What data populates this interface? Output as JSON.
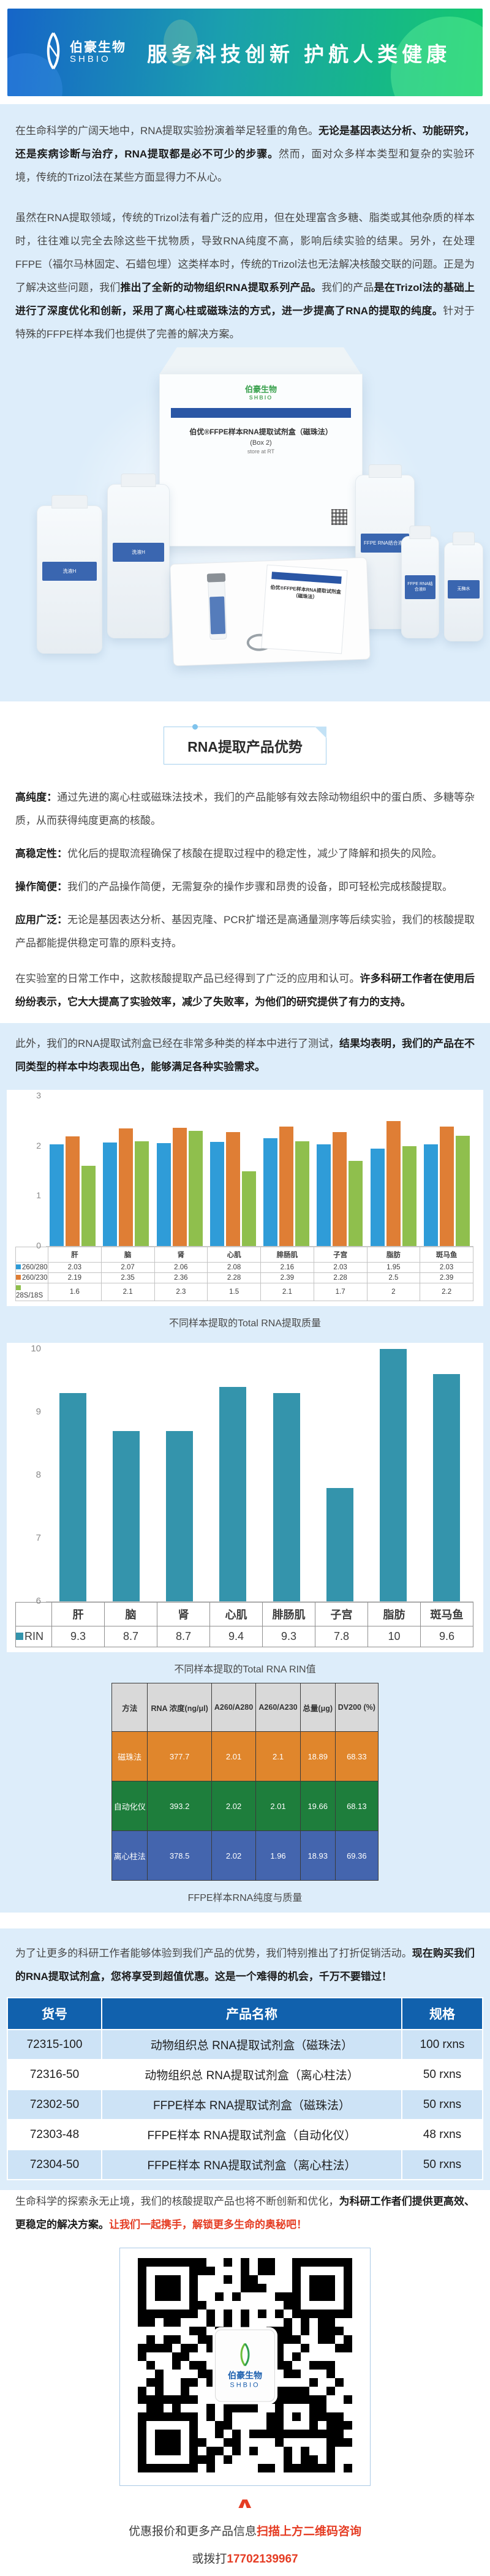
{
  "header": {
    "logo_cn": "伯豪生物",
    "logo_en": "SHBIO",
    "slogan": "服务科技创新 护航人类健康"
  },
  "intro": {
    "p1_normal1": "在生命科学的广阔天地中，RNA提取实验扮演着举足轻重的角色。",
    "p1_bold": "无论是基因表达分析、功能研究，还是疾病诊断与治疗，RNA提取都是必不可少的步骤。",
    "p1_normal2": "然而，面对众多样本类型和复杂的实验环境，传统的Trizol法在某些方面显得力不从心。",
    "p2_normal1": "虽然在RNA提取领域，传统的Trizol法有着广泛的应用，但在处理富含多糖、脂类或其他杂质的样本时，往往难以完全去除这些干扰物质，导致RNA纯度不高，影响后续实验的结果。另外，在处理FFPE（福尔马林固定、石蜡包埋）这类样本时，传统的Trizol法也无法解决核酸交联的问题。正是为了解决这些问题，我们",
    "p2_bold1": "推出了全新的动物组织RNA提取系列产品。",
    "p2_normal2": "我们的产品",
    "p2_bold2": "是在Trizol法的基础上进行了深度优化和创新，采用了离心柱或磁珠法的方式，进一步提高了RNA的提取的纯度。",
    "p2_normal3": "针对于特殊的FFPE样本我们也提供了完善的解决方案。"
  },
  "product_photo": {
    "box_title": "伯优®FFPE样本RNA提取试剂盒（磁珠法）",
    "box_subtitle": "(Box 2)",
    "box_note": "store at RT",
    "bottle_label_1": "洗液H",
    "bottle_label_2": "FFPE RNA结合液B",
    "bottle_label_3": "无酶水"
  },
  "badge": {
    "label": "RNA提取产品优势"
  },
  "features": [
    {
      "title": "高纯度：",
      "text": "通过先进的离心柱或磁珠法技术，我们的产品能够有效去除动物组织中的蛋白质、多糖等杂质，从而获得纯度更高的核酸。"
    },
    {
      "title": "高稳定性：",
      "text": "优化后的提取流程确保了核酸在提取过程中的稳定性，减少了降解和损失的风险。"
    },
    {
      "title": "操作简便：",
      "text": "我们的产品操作简便，无需复杂的操作步骤和昂贵的设备，即可轻松完成核酸提取。"
    },
    {
      "title": "应用广泛：",
      "text": "无论是基因表达分析、基因克隆、PCR扩增还是高通量测序等后续实验，我们的核酸提取产品都能提供稳定可靠的原料支持。"
    }
  ],
  "usage": {
    "normal": "在实验室的日常工作中，这款核酸提取产品已经得到了广泛的应用和认可。",
    "bold": "许多科研工作者在使用后纷纷表示，它大大提高了实验效率，减少了失败率，为他们的研究提供了有力的支持。"
  },
  "tested": {
    "normal": "此外，我们的RNA提取试剂盒已经在非常多种类的样本中进行了测试，",
    "bold": "结果均表明，我们的产品在不同类型的样本中均表现出色，能够满足各种实验需求。"
  },
  "chart_data": [
    {
      "type": "bar",
      "title": "不同样本提取的Total RNA提取质量",
      "categories": [
        "肝",
        "脑",
        "肾",
        "心肌",
        "腓肠肌",
        "子宫",
        "脂肪",
        "斑马鱼"
      ],
      "series": [
        {
          "name": "260/280",
          "color": "#2f9cd8",
          "values": [
            2.03,
            2.07,
            2.06,
            2.08,
            2.16,
            2.03,
            1.95,
            2.03
          ]
        },
        {
          "name": "260/230",
          "color": "#df7e35",
          "values": [
            2.19,
            2.35,
            2.36,
            2.28,
            2.39,
            2.28,
            2.5,
            2.39
          ]
        },
        {
          "name": "28S/18S",
          "color": "#8fbf4d",
          "values": [
            1.6,
            2.1,
            2.3,
            1.5,
            2.1,
            1.7,
            2,
            2.2
          ]
        }
      ],
      "ylim": [
        0,
        3
      ],
      "yticks": [
        0,
        1,
        2,
        3
      ],
      "grid": false,
      "legend_position": "table-below"
    },
    {
      "type": "bar",
      "title": "不同样本提取的Total RNA RIN值",
      "categories": [
        "肝",
        "脑",
        "肾",
        "心肌",
        "腓肠肌",
        "子宫",
        "脂肪",
        "斑马鱼"
      ],
      "series": [
        {
          "name": "RIN",
          "color": "#3494ac",
          "values": [
            9.3,
            8.7,
            8.7,
            9.4,
            9.3,
            7.8,
            10,
            9.6
          ]
        }
      ],
      "ylim": [
        6,
        10
      ],
      "yticks": [
        6,
        7,
        8,
        9,
        10
      ],
      "grid": false,
      "legend_position": "table-below"
    }
  ],
  "ffpe_table": {
    "title": "FFPE样本RNA纯度与质量",
    "headers": [
      "方法",
      "RNA 浓度(ng/μl)",
      "A260/A280",
      "A260/A230",
      "总量(μg)",
      "DV200 (%)"
    ],
    "rows": [
      {
        "method": "磁珠法",
        "color": "#e0862c",
        "values": [
          "377.7",
          "2.01",
          "2.1",
          "18.89",
          "68.33"
        ]
      },
      {
        "method": "自动化仪",
        "color": "#1e7e3c",
        "values": [
          "393.2",
          "2.02",
          "2.01",
          "19.66",
          "68.13"
        ]
      },
      {
        "method": "离心柱法",
        "color": "#4465ae",
        "values": [
          "378.5",
          "2.02",
          "1.96",
          "18.93",
          "69.36"
        ]
      }
    ]
  },
  "promo": {
    "normal": "为了让更多的科研工作者能够体验到我们产品的优势，我们特别推出了打折促销活动。",
    "bold": "现在购买我们的RNA提取试剂盒，您将享受到超值优惠。这是一个难得的机会，千万不要错过！"
  },
  "product_table": {
    "headers": [
      "货号",
      "产品名称",
      "规格"
    ],
    "rows": [
      [
        "72315-100",
        "动物组织总 RNA提取试剂盒（磁珠法）",
        "100 rxns"
      ],
      [
        "72316-50",
        "动物组织总 RNA提取试剂盒（离心柱法）",
        "50 rxns"
      ],
      [
        "72302-50",
        "FFPE样本 RNA提取试剂盒（磁珠法）",
        "50 rxns"
      ],
      [
        "72303-48",
        "FFPE样本 RNA提取试剂盒（自动化仪）",
        "48 rxns"
      ],
      [
        "72304-50",
        "FFPE样本 RNA提取试剂盒（离心柱法）",
        "50 rxns"
      ]
    ]
  },
  "closing": {
    "normal": "生命科学的探索永无止境，我们的核酸提取产品也将不断创新和优化，",
    "bold": "为科研工作者们提供更高效、更稳定的解决方案。",
    "red": "让我们一起携手，解锁更多生命的奥秘吧！"
  },
  "qr": {
    "center_logo_cn": "伯豪生物",
    "center_logo_en": "SHBIO"
  },
  "footer": {
    "line1_normal": "优惠报价和更多产品信息",
    "line1_red": "扫描上方二维码咨询",
    "line2_normal": "或拨打",
    "line2_red": "17702139967"
  },
  "colors": {
    "accent_red": "#e53c23",
    "panel_blue": "#ddedfa",
    "banner_blue": "#1665c8",
    "banner_green": "#14c96e",
    "table_header_blue": "#1161ad"
  }
}
